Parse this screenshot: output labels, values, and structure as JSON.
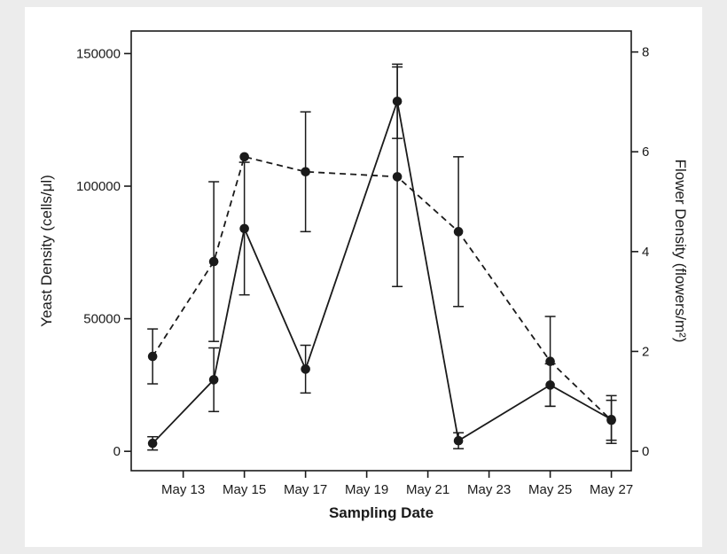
{
  "figure": {
    "page_background": "#ececec",
    "figure_background": "#ffffff",
    "ink_color": "#1a1a1a"
  },
  "chart_data": {
    "type": "line",
    "title": "",
    "xlabel": "Sampling Date",
    "ylabel_left": "Yeast Density (cells/μl)",
    "ylabel_right": "Flower Density (flowers/m²)",
    "grid": false,
    "legend": "none",
    "x_axis": {
      "tick_labels": [
        "May 13",
        "May 15",
        "May 17",
        "May 19",
        "May 21",
        "May 23",
        "May 25",
        "May 27"
      ],
      "tick_days": [
        13,
        15,
        17,
        19,
        21,
        23,
        25,
        27
      ],
      "range_days": [
        11.3,
        27.65
      ]
    },
    "left_axis": {
      "ticks": [
        0,
        50000,
        100000,
        150000
      ],
      "range": [
        -7300,
        158500
      ]
    },
    "right_axis": {
      "ticks": [
        0,
        2,
        4,
        6,
        8
      ],
      "range": [
        -0.39,
        8.42
      ]
    },
    "series": [
      {
        "name": "Yeast Density",
        "axis": "left",
        "line_style": "solid",
        "marker": "filled-circle",
        "x_days": [
          12,
          14,
          15,
          17,
          20,
          22,
          25,
          27
        ],
        "values": [
          3000,
          27000,
          84000,
          31000,
          132000,
          4000,
          25000,
          12000
        ],
        "errors": [
          2500,
          12000,
          25000,
          9000,
          14000,
          3000,
          8000,
          9000
        ]
      },
      {
        "name": "Flower Density",
        "axis": "right",
        "line_style": "dashed",
        "marker": "filled-circle",
        "x_days": [
          12,
          14,
          15,
          17,
          20,
          22,
          25,
          27
        ],
        "values": [
          1.9,
          3.8,
          5.9,
          5.6,
          5.5,
          4.4,
          1.8,
          0.62
        ],
        "errors": [
          0.55,
          1.6,
          0,
          1.2,
          2.2,
          1.5,
          0.9,
          0.4
        ]
      }
    ]
  }
}
